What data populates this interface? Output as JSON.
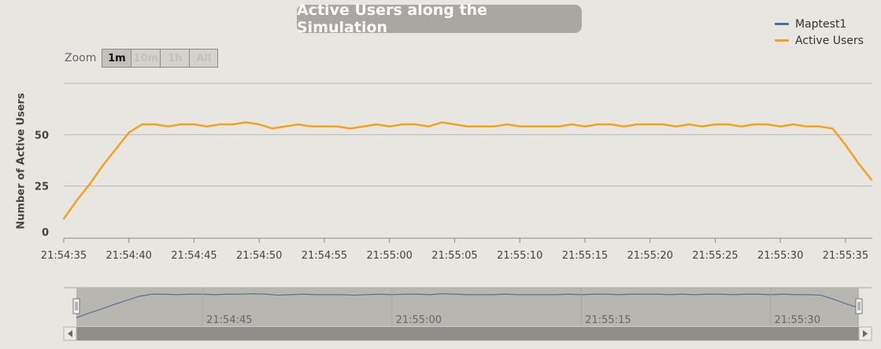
{
  "chart_data": {
    "type": "line",
    "title": "Active Users along the Simulation",
    "ylabel": "Number of Active Users",
    "xlabel": "",
    "ylim": [
      0,
      75
    ],
    "yticks": [
      0,
      25,
      50
    ],
    "xlim_seconds": [
      0,
      62
    ],
    "x_tick_labels": [
      "21:54:35",
      "21:54:40",
      "21:54:45",
      "21:54:50",
      "21:54:55",
      "21:55:00",
      "21:55:05",
      "21:55:10",
      "21:55:15",
      "21:55:20",
      "21:55:25",
      "21:55:30",
      "21:55:35",
      "21:…"
    ],
    "grid": true,
    "legend_position": "top-right",
    "legend": [
      "Maptest1",
      "Active Users"
    ],
    "series": [
      {
        "name": "Maptest1",
        "color": "#4a6da7",
        "values": []
      },
      {
        "name": "Active Users",
        "color": "#f3a21d",
        "x": [
          0,
          1,
          2,
          3,
          4,
          5,
          6,
          7,
          8,
          9,
          10,
          11,
          12,
          13,
          14,
          15,
          16,
          17,
          18,
          19,
          20,
          21,
          22,
          23,
          24,
          25,
          26,
          27,
          28,
          29,
          30,
          31,
          32,
          33,
          34,
          35,
          36,
          37,
          38,
          39,
          40,
          41,
          42,
          43,
          44,
          45,
          46,
          47,
          48,
          49,
          50,
          51,
          52,
          53,
          54,
          55,
          56,
          57,
          58,
          59,
          60,
          61,
          62
        ],
        "values": [
          9,
          18,
          26,
          35,
          43,
          51,
          55,
          55,
          54,
          55,
          55,
          54,
          55,
          55,
          56,
          55,
          53,
          54,
          55,
          54,
          54,
          54,
          53,
          54,
          55,
          54,
          55,
          55,
          54,
          56,
          55,
          54,
          54,
          54,
          55,
          54,
          54,
          54,
          54,
          55,
          54,
          55,
          55,
          54,
          55,
          55,
          55,
          54,
          55,
          54,
          55,
          55,
          54,
          55,
          55,
          54,
          55,
          54,
          54,
          53,
          45,
          36,
          28
        ]
      }
    ]
  },
  "zoom": {
    "label": "Zoom",
    "buttons": [
      "1m",
      "10m",
      "1h",
      "All"
    ],
    "active": "1m"
  },
  "navigator": {
    "tick_labels": [
      "21:54:45",
      "21:55:00",
      "21:55:15",
      "21:55:30"
    ],
    "range_start": 0,
    "range_end": 1
  }
}
